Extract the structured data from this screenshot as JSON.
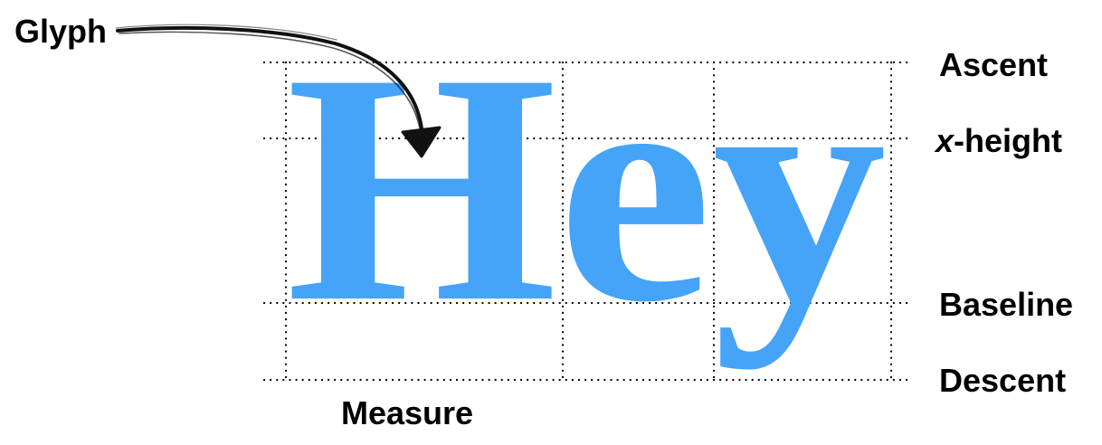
{
  "word": "Hey",
  "word_color": "#45a3f8",
  "labels": {
    "glyph": "Glyph",
    "ascent": "Ascent",
    "x_height_italic": "x",
    "x_height_rest": "-height",
    "baseline": "Baseline",
    "descent": "Descent",
    "measure": "Measure"
  }
}
